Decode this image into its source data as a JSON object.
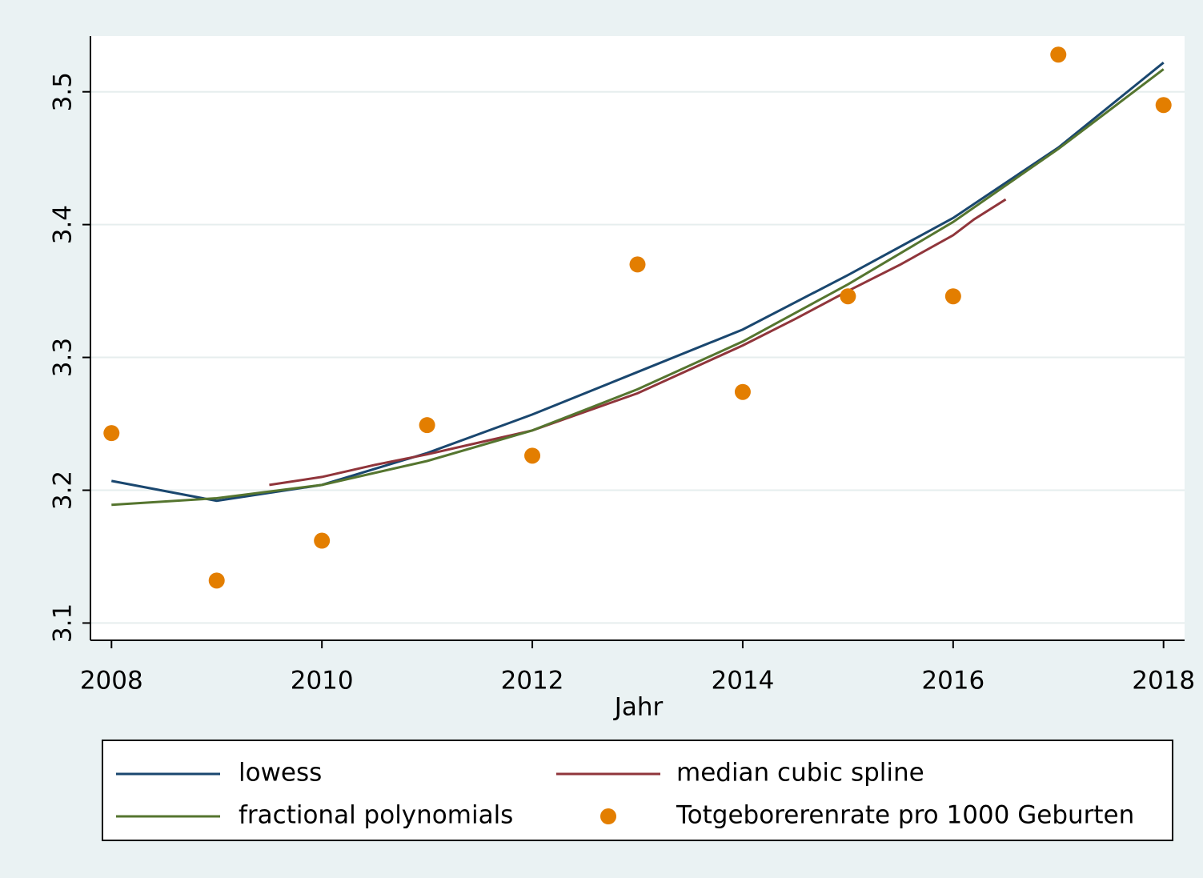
{
  "chart_data": {
    "type": "line",
    "x_label": "Jahr",
    "xlim": [
      2007.8,
      2018.2
    ],
    "xticks": [
      2008,
      2010,
      2012,
      2014,
      2016,
      2018
    ],
    "ylim": [
      3.087,
      3.542
    ],
    "yticks": [
      3.1,
      3.2,
      3.3,
      3.4,
      3.5
    ],
    "grid": true,
    "legend": "bottom",
    "series": [
      {
        "name": "lowess",
        "color": "#1a476f",
        "mode": "line",
        "x": [
          2008,
          2009,
          2010,
          2011,
          2012,
          2013,
          2014,
          2015,
          2016,
          2017,
          2018
        ],
        "values": [
          3.207,
          3.192,
          3.204,
          3.228,
          3.257,
          3.289,
          3.321,
          3.362,
          3.405,
          3.458,
          3.522
        ]
      },
      {
        "name": "median cubic spline",
        "color": "#90353b",
        "mode": "line",
        "x": [
          2009.5,
          2010,
          2010.5,
          2011,
          2011.5,
          2012,
          2012.5,
          2013,
          2013.5,
          2014,
          2014.5,
          2015,
          2015.5,
          2016,
          2016.2,
          2016.5
        ],
        "values": [
          3.204,
          3.21,
          3.219,
          3.227,
          3.236,
          3.245,
          3.259,
          3.273,
          3.291,
          3.309,
          3.329,
          3.35,
          3.37,
          3.392,
          3.404,
          3.419
        ]
      },
      {
        "name": "fractional polynomials",
        "color": "#55752f",
        "mode": "line",
        "x": [
          2008,
          2009,
          2010,
          2011,
          2012,
          2013,
          2014,
          2015,
          2016,
          2017,
          2018
        ],
        "values": [
          3.189,
          3.194,
          3.204,
          3.222,
          3.245,
          3.276,
          3.312,
          3.355,
          3.402,
          3.457,
          3.517
        ]
      },
      {
        "name": "Totgeborerenrate pro 1000 Geburten",
        "color": "#e37e00",
        "mode": "markers",
        "x": [
          2008,
          2009,
          2010,
          2011,
          2012,
          2013,
          2014,
          2015,
          2016,
          2017,
          2018
        ],
        "values": [
          3.243,
          3.132,
          3.162,
          3.249,
          3.226,
          3.37,
          3.274,
          3.346,
          3.346,
          3.528,
          3.49
        ]
      }
    ]
  }
}
